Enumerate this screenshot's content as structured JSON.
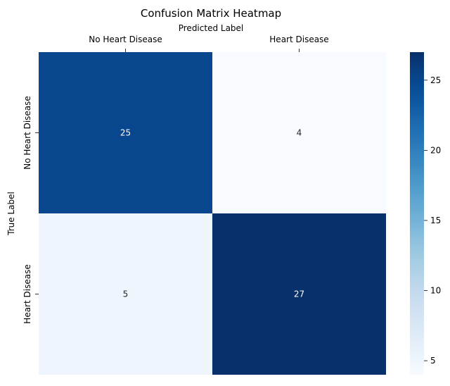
{
  "chart_data": {
    "type": "heatmap",
    "title": "Confusion Matrix Heatmap",
    "xlabel": "Predicted Label",
    "ylabel": "True Label",
    "x_categories": [
      "No Heart Disease",
      "Heart Disease"
    ],
    "y_categories": [
      "No Heart Disease",
      "Heart Disease"
    ],
    "values": [
      [
        25,
        4
      ],
      [
        5,
        27
      ]
    ],
    "colormap": "Blues",
    "vmin": 4,
    "vmax": 27,
    "colorbar_ticks": [
      5,
      10,
      15,
      20,
      25
    ],
    "x_axis_position": "top",
    "grid": false
  }
}
